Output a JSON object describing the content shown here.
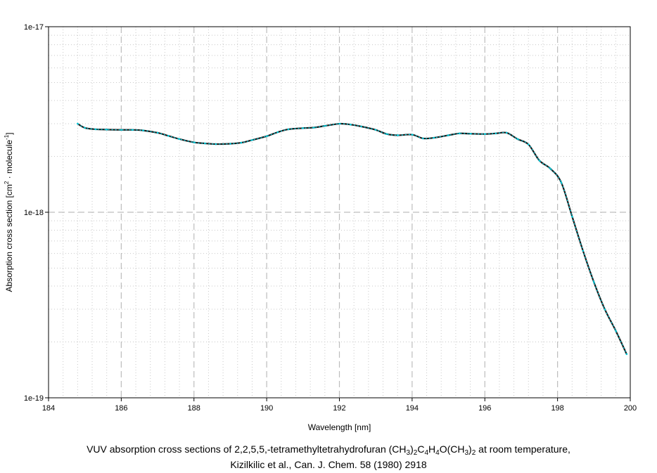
{
  "chart_data": {
    "type": "line",
    "title": "",
    "xlabel": "Wavelength [nm]",
    "ylabel": {
      "prefix": "Absorption cross section [cm",
      "sup1": "2",
      "middle": " · molecule",
      "sup2": "-1",
      "suffix": "]"
    },
    "xlim": [
      184,
      200
    ],
    "ylim": [
      1e-19,
      1e-17
    ],
    "yscale": "log",
    "grid": true,
    "x_ticks": [
      "184",
      "186",
      "188",
      "190",
      "192",
      "194",
      "196",
      "198",
      "200"
    ],
    "y_ticks": [
      "1e-19",
      "1e-18",
      "1e-17"
    ],
    "series": [
      {
        "line_color": "#1a1a1a",
        "marker_color": "#00c8d8",
        "x": [
          184.8,
          185.0,
          185.3,
          185.6,
          186.0,
          186.3,
          186.6,
          187.0,
          187.3,
          187.6,
          188.0,
          188.3,
          188.6,
          189.0,
          189.3,
          189.6,
          190.0,
          190.3,
          190.6,
          191.0,
          191.3,
          191.6,
          192.0,
          192.3,
          192.6,
          193.0,
          193.3,
          193.6,
          194.0,
          194.3,
          194.6,
          195.0,
          195.3,
          195.6,
          196.0,
          196.3,
          196.6,
          196.9,
          197.2,
          197.5,
          197.8,
          198.1,
          198.4,
          198.7,
          199.0,
          199.3,
          199.6,
          199.9
        ],
        "y": [
          3e-18,
          2.85e-18,
          2.8e-18,
          2.79e-18,
          2.78e-18,
          2.78e-18,
          2.76e-18,
          2.68e-18,
          2.58e-18,
          2.48e-18,
          2.38e-18,
          2.35e-18,
          2.33e-18,
          2.34e-18,
          2.37e-18,
          2.45e-18,
          2.57e-18,
          2.7e-18,
          2.8e-18,
          2.84e-18,
          2.86e-18,
          2.92e-18,
          3e-18,
          2.97e-18,
          2.9e-18,
          2.78e-18,
          2.64e-18,
          2.6e-18,
          2.62e-18,
          2.5e-18,
          2.52e-18,
          2.6e-18,
          2.66e-18,
          2.65e-18,
          2.64e-18,
          2.66e-18,
          2.68e-18,
          2.48e-18,
          2.32e-18,
          1.9e-18,
          1.72e-18,
          1.45e-18,
          9.5e-19,
          6.2e-19,
          4.2e-19,
          3e-19,
          2.3e-19,
          1.72e-19
        ]
      }
    ]
  },
  "caption": {
    "line1": {
      "text_before": "VUV absorption cross sections of 2,2,5,5,-tetramethyltetrahydrofuran (CH",
      "sub1": "3",
      "t2": ")",
      "sub2": "2",
      "t3": "C",
      "sub3": "4",
      "t4": "H",
      "sub4": "4",
      "t5": "O(CH",
      "sub5": "3",
      "t6": ")",
      "sub6": "2",
      "text_after": " at room temperature,"
    },
    "line2": "Kizilkilic et al., Can. J. Chem. 58 (1980) 2918"
  }
}
